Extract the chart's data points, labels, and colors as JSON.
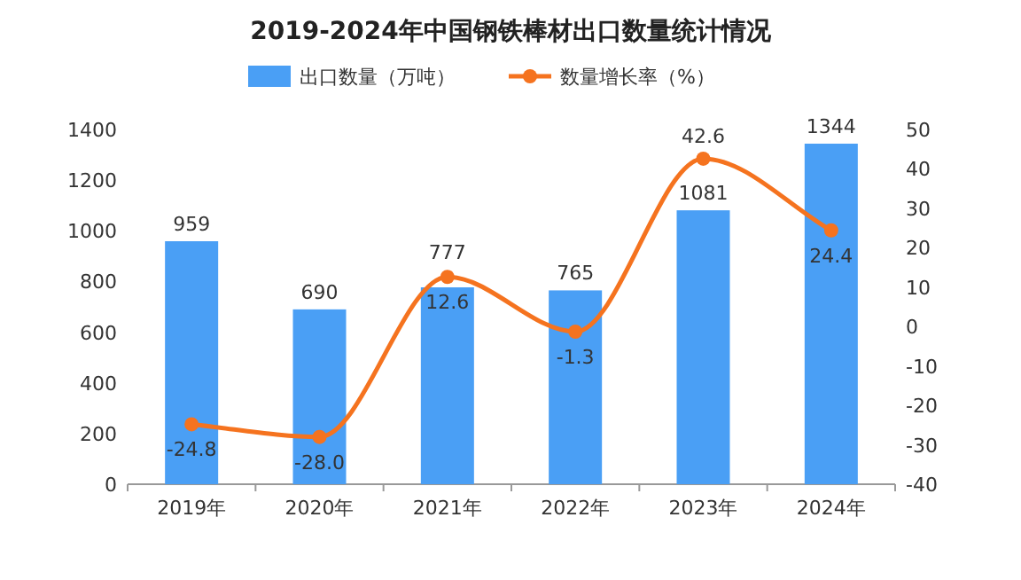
{
  "chart_data": {
    "type": "bar",
    "title": "2019-2024年中国钢铁棒材出口数量统计情况",
    "categories": [
      "2019年",
      "2020年",
      "2021年",
      "2022年",
      "2023年",
      "2024年"
    ],
    "series": [
      {
        "name": "出口数量（万吨）",
        "color": "#4a9ff5",
        "values": [
          959,
          690,
          777,
          765,
          1081,
          1344
        ],
        "value_labels": [
          "959",
          "690",
          "777",
          "765",
          "1081",
          "1344"
        ]
      },
      {
        "name": "数量增长率（%）",
        "type": "line",
        "axis": "y2",
        "color": "#f5731f",
        "values": [
          -24.8,
          -28.0,
          12.6,
          -1.3,
          42.6,
          24.4
        ],
        "value_labels": [
          "-24.8",
          "-28.0",
          "12.6",
          "-1.3",
          "42.6",
          "24.4"
        ]
      }
    ],
    "ylim": [
      0,
      1400
    ],
    "yticks": [
      0,
      200,
      400,
      600,
      800,
      1000,
      1200,
      1400
    ],
    "y2lim": [
      -40,
      50
    ],
    "y2ticks": [
      -40,
      -30,
      -20,
      -10,
      0,
      10,
      20,
      30,
      40,
      50
    ],
    "marker": "circle",
    "legend": "top",
    "grid": false
  }
}
